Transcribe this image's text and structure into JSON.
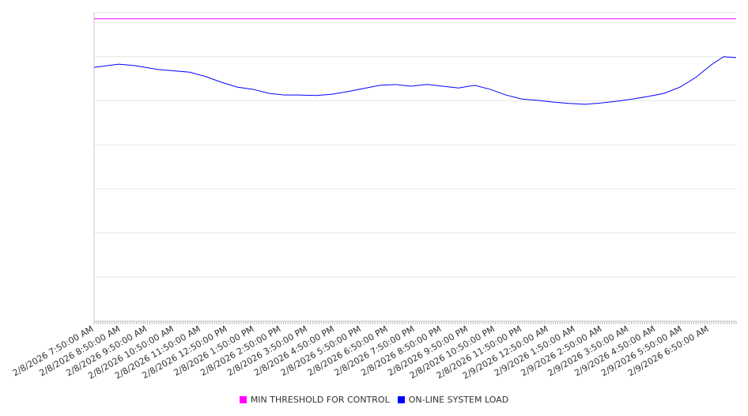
{
  "chart_data": {
    "type": "line",
    "title": "",
    "xlabel": "",
    "ylabel": "",
    "y_tick_labels_shown": false,
    "ylim": [
      0,
      7
    ],
    "grid": true,
    "legend_position": "bottom",
    "x_tick_labels": [
      "2/8/2026 7:50:00 AM",
      "2/8/2026 8:50:00 AM",
      "2/8/2026 9:50:00 AM",
      "2/8/2026 10:50:00 AM",
      "2/8/2026 11:50:00 AM",
      "2/8/2026 12:50:00 PM",
      "2/8/2026 1:50:00 PM",
      "2/8/2026 2:50:00 PM",
      "2/8/2026 3:50:00 PM",
      "2/8/2026 4:50:00 PM",
      "2/8/2026 5:50:00 PM",
      "2/8/2026 6:50:00 PM",
      "2/8/2026 7:50:00 PM",
      "2/8/2026 8:50:00 PM",
      "2/8/2026 9:50:00 PM",
      "2/8/2026 10:50:00 PM",
      "2/8/2026 11:50:00 PM",
      "2/9/2026 12:50:00 AM",
      "2/9/2026 1:50:00 AM",
      "2/9/2026 2:50:00 AM",
      "2/9/2026 3:50:00 AM",
      "2/9/2026 4:50:00 AM",
      "2/9/2026 5:50:00 AM",
      "2/9/2026 6:50:00 AM"
    ],
    "xlim_hours": [
      0,
      24
    ],
    "series": [
      {
        "name": "MIN THRESHOLD FOR CONTROL",
        "color": "#ff00ff",
        "x_hours": [
          0,
          24
        ],
        "values": [
          6.86,
          6.86
        ]
      },
      {
        "name": "ON-LINE SYSTEM LOAD",
        "color": "#0000ff",
        "x_hours": [
          0,
          0.92,
          1.51,
          2.39,
          3.57,
          4.17,
          4.76,
          5.35,
          5.94,
          6.53,
          7.12,
          7.71,
          8.31,
          8.9,
          9.49,
          10.08,
          10.67,
          11.26,
          11.85,
          12.44,
          13.03,
          13.62,
          14.22,
          14.81,
          15.4,
          15.99,
          16.58,
          17.17,
          17.76,
          18.35,
          18.95,
          19.54,
          20.13,
          20.72,
          21.31,
          21.9,
          22.49,
          23.08,
          23.53,
          24
        ],
        "values": [
          5.76,
          5.83,
          5.8,
          5.71,
          5.65,
          5.55,
          5.42,
          5.31,
          5.26,
          5.17,
          5.13,
          5.13,
          5.12,
          5.15,
          5.21,
          5.28,
          5.35,
          5.37,
          5.33,
          5.37,
          5.33,
          5.29,
          5.35,
          5.26,
          5.13,
          5.04,
          5.01,
          4.97,
          4.94,
          4.92,
          4.95,
          4.99,
          5.04,
          5.1,
          5.17,
          5.31,
          5.53,
          5.82,
          6.0,
          5.98
        ]
      }
    ]
  }
}
